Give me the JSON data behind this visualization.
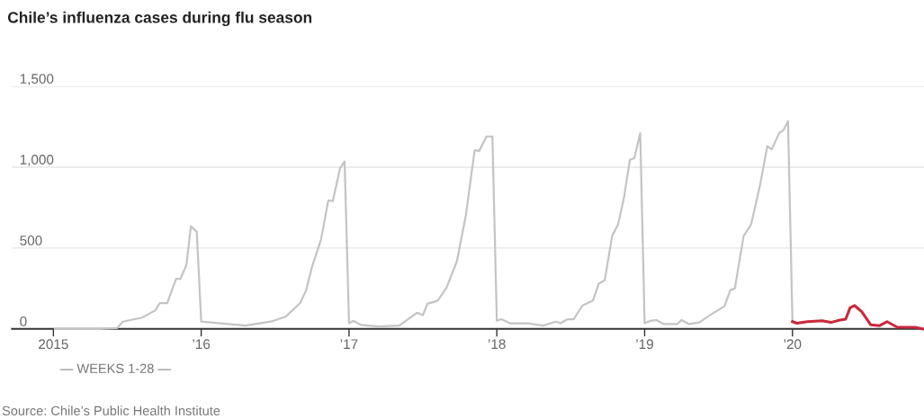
{
  "chart_data": {
    "type": "line",
    "title": "Chile’s influenza cases during flu season",
    "annotations": [
      "— WEEKS 1-28 —",
      "Source: Chile’s Public Health Institute"
    ],
    "series": [
      {
        "color": "#c4c4c4",
        "x": [
          2015.01,
          2015.31,
          2015.43,
          2015.47,
          2015.6,
          2015.69,
          2015.72,
          2015.77,
          2015.83,
          2015.86,
          2015.9,
          2015.93,
          2015.97,
          2016.0,
          2016.3,
          2016.47,
          2016.57,
          2016.67,
          2016.71,
          2016.75,
          2016.81,
          2016.86,
          2016.89,
          2016.94,
          2016.97,
          2017.0,
          2017.03,
          2017.08,
          2017.2,
          2017.34,
          2017.46,
          2017.5,
          2017.53,
          2017.6,
          2017.66,
          2017.73,
          2017.79,
          2017.85,
          2017.88,
          2017.93,
          2017.97,
          2018.0,
          2018.03,
          2018.09,
          2018.21,
          2018.31,
          2018.4,
          2018.43,
          2018.48,
          2018.52,
          2018.58,
          2018.65,
          2018.69,
          2018.73,
          2018.78,
          2018.82,
          2018.86,
          2018.9,
          2018.93,
          2018.97,
          2019.0,
          2019.04,
          2019.08,
          2019.13,
          2019.22,
          2019.25,
          2019.3,
          2019.37,
          2019.45,
          2019.54,
          2019.58,
          2019.61,
          2019.67,
          2019.72,
          2019.78,
          2019.83,
          2019.86,
          2019.91,
          2019.94,
          2019.97,
          2020.0
        ],
        "values": [
          0,
          0,
          5,
          45,
          70,
          115,
          160,
          160,
          310,
          310,
          395,
          635,
          600,
          45,
          20,
          45,
          75,
          160,
          240,
          385,
          550,
          795,
          790,
          995,
          1035,
          35,
          50,
          25,
          15,
          20,
          100,
          85,
          155,
          175,
          255,
          420,
          700,
          1105,
          1100,
          1190,
          1190,
          50,
          60,
          35,
          35,
          20,
          45,
          35,
          60,
          60,
          145,
          175,
          280,
          300,
          575,
          645,
          810,
          1045,
          1055,
          1210,
          35,
          50,
          55,
          30,
          30,
          55,
          30,
          40,
          90,
          140,
          240,
          250,
          575,
          645,
          885,
          1130,
          1110,
          1210,
          1230,
          1285,
          45
        ]
      },
      {
        "color": "#c8283a",
        "x": [
          2020.0,
          2020.03,
          2020.1,
          2020.2,
          2020.26,
          2020.32,
          2020.36,
          2020.39,
          2020.42,
          2020.47,
          2020.53,
          2020.59,
          2020.64,
          2020.71,
          2020.83,
          2020.88
        ],
        "values": [
          45,
          35,
          45,
          50,
          40,
          55,
          60,
          130,
          145,
          105,
          25,
          20,
          45,
          10,
          10,
          0
        ]
      }
    ],
    "xlim": [
      2014.72,
      2020.89
    ],
    "ylim": [
      0,
      1500
    ],
    "xticks": [
      2015,
      {
        "value": 2016,
        "label": "’16"
      },
      {
        "value": 2017,
        "label": "’17"
      },
      {
        "value": 2018,
        "label": "’18"
      },
      {
        "value": 2019,
        "label": "’19"
      },
      {
        "value": 2020,
        "label": "’20"
      }
    ],
    "yticks": [
      {
        "value": 0,
        "label": "0"
      },
      {
        "value": 500,
        "label": "500"
      },
      {
        "value": 1000,
        "label": "1,000"
      },
      {
        "value": 1500,
        "label": "1,500"
      }
    ],
    "grid": "y"
  }
}
